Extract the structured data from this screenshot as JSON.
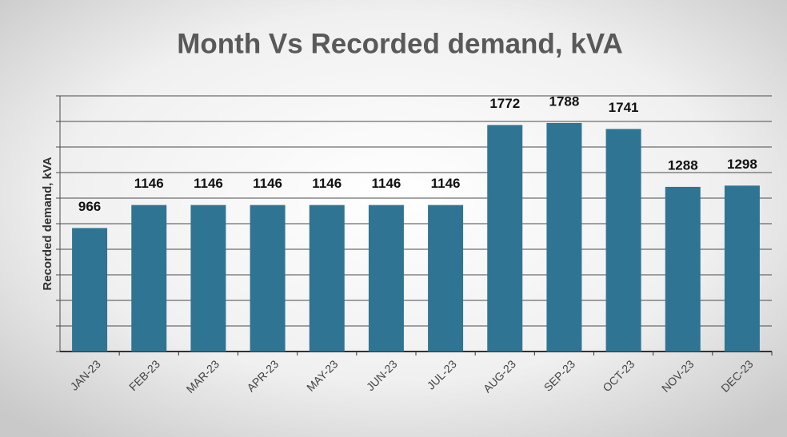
{
  "chart_data": {
    "type": "bar",
    "title": "Month Vs Recorded demand, kVA",
    "y_label": "Recorded demand, kVA",
    "categories": [
      "JAN-23",
      "FEB-23",
      "MAR-23",
      "APR-23",
      "MAY-23",
      "JUN-23",
      "JUL-23",
      "AUG-23",
      "SEP-23",
      "OCT-23",
      "NOV-23",
      "DEC-23"
    ],
    "values": [
      966,
      1146,
      1146,
      1146,
      1146,
      1146,
      1146,
      1772,
      1788,
      1741,
      1288,
      1298
    ],
    "color": "#2f7593",
    "ylim": [
      0,
      2000
    ],
    "yticks": [
      0,
      200,
      400,
      600,
      800,
      1000,
      1200,
      1400,
      1600,
      1800,
      2000
    ],
    "grid": true
  }
}
